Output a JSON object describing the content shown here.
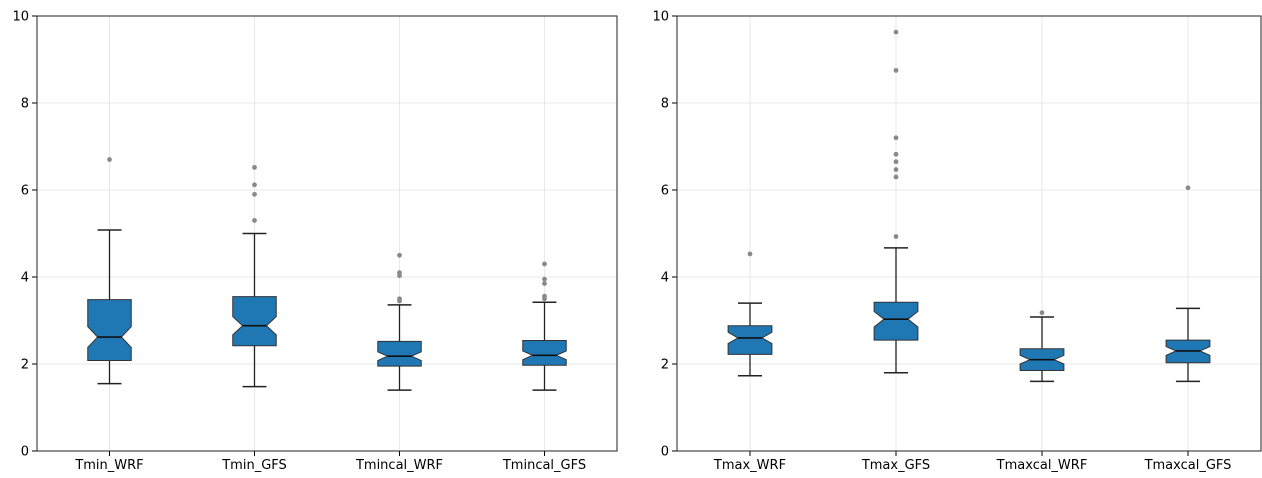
{
  "chart_data": [
    {
      "type": "boxplot",
      "notched": true,
      "ylim": [
        0,
        10
      ],
      "yticks": [
        "0",
        "2",
        "4",
        "6",
        "8",
        "10"
      ],
      "grid": true,
      "box_color": "#1f77b4",
      "categories": [
        "Tmin_WRF",
        "Tmin_GFS",
        "Tmincal_WRF",
        "Tmincal_GFS"
      ],
      "boxes": [
        {
          "whislo": 1.55,
          "q1": 2.08,
          "med": 2.62,
          "q3": 3.48,
          "whishi": 5.08,
          "cilo": 2.38,
          "cihi": 2.86,
          "fliers": [
            6.7
          ]
        },
        {
          "whislo": 1.48,
          "q1": 2.42,
          "med": 2.88,
          "q3": 3.55,
          "whishi": 5.0,
          "cilo": 2.67,
          "cihi": 3.09,
          "fliers": [
            5.3,
            5.9,
            6.12,
            6.52
          ]
        },
        {
          "whislo": 1.4,
          "q1": 1.95,
          "med": 2.18,
          "q3": 2.52,
          "whishi": 3.36,
          "cilo": 2.08,
          "cihi": 2.28,
          "fliers": [
            3.45,
            3.5,
            4.03,
            4.1,
            4.5
          ]
        },
        {
          "whislo": 1.4,
          "q1": 1.97,
          "med": 2.2,
          "q3": 2.54,
          "whishi": 3.42,
          "cilo": 2.1,
          "cihi": 2.3,
          "fliers": [
            3.5,
            3.56,
            3.85,
            3.95,
            4.3
          ]
        }
      ]
    },
    {
      "type": "boxplot",
      "notched": true,
      "ylim": [
        0,
        10
      ],
      "yticks": [
        "0",
        "2",
        "4",
        "6",
        "8",
        "10"
      ],
      "grid": true,
      "box_color": "#1f77b4",
      "categories": [
        "Tmax_WRF",
        "Tmax_GFS",
        "Tmaxcal_WRF",
        "Tmaxcal_GFS"
      ],
      "boxes": [
        {
          "whislo": 1.73,
          "q1": 2.22,
          "med": 2.6,
          "q3": 2.88,
          "whishi": 3.4,
          "cilo": 2.47,
          "cihi": 2.73,
          "fliers": [
            4.53
          ]
        },
        {
          "whislo": 1.8,
          "q1": 2.55,
          "med": 3.03,
          "q3": 3.42,
          "whishi": 4.67,
          "cilo": 2.85,
          "cihi": 3.21,
          "fliers": [
            4.93,
            6.3,
            6.47,
            6.65,
            6.82,
            7.2,
            8.75,
            9.63
          ]
        },
        {
          "whislo": 1.6,
          "q1": 1.85,
          "med": 2.1,
          "q3": 2.35,
          "whishi": 3.08,
          "cilo": 2.0,
          "cihi": 2.2,
          "fliers": [
            3.18
          ]
        },
        {
          "whislo": 1.6,
          "q1": 2.03,
          "med": 2.3,
          "q3": 2.55,
          "whishi": 3.28,
          "cilo": 2.2,
          "cihi": 2.4,
          "fliers": [
            6.05
          ]
        }
      ]
    }
  ]
}
